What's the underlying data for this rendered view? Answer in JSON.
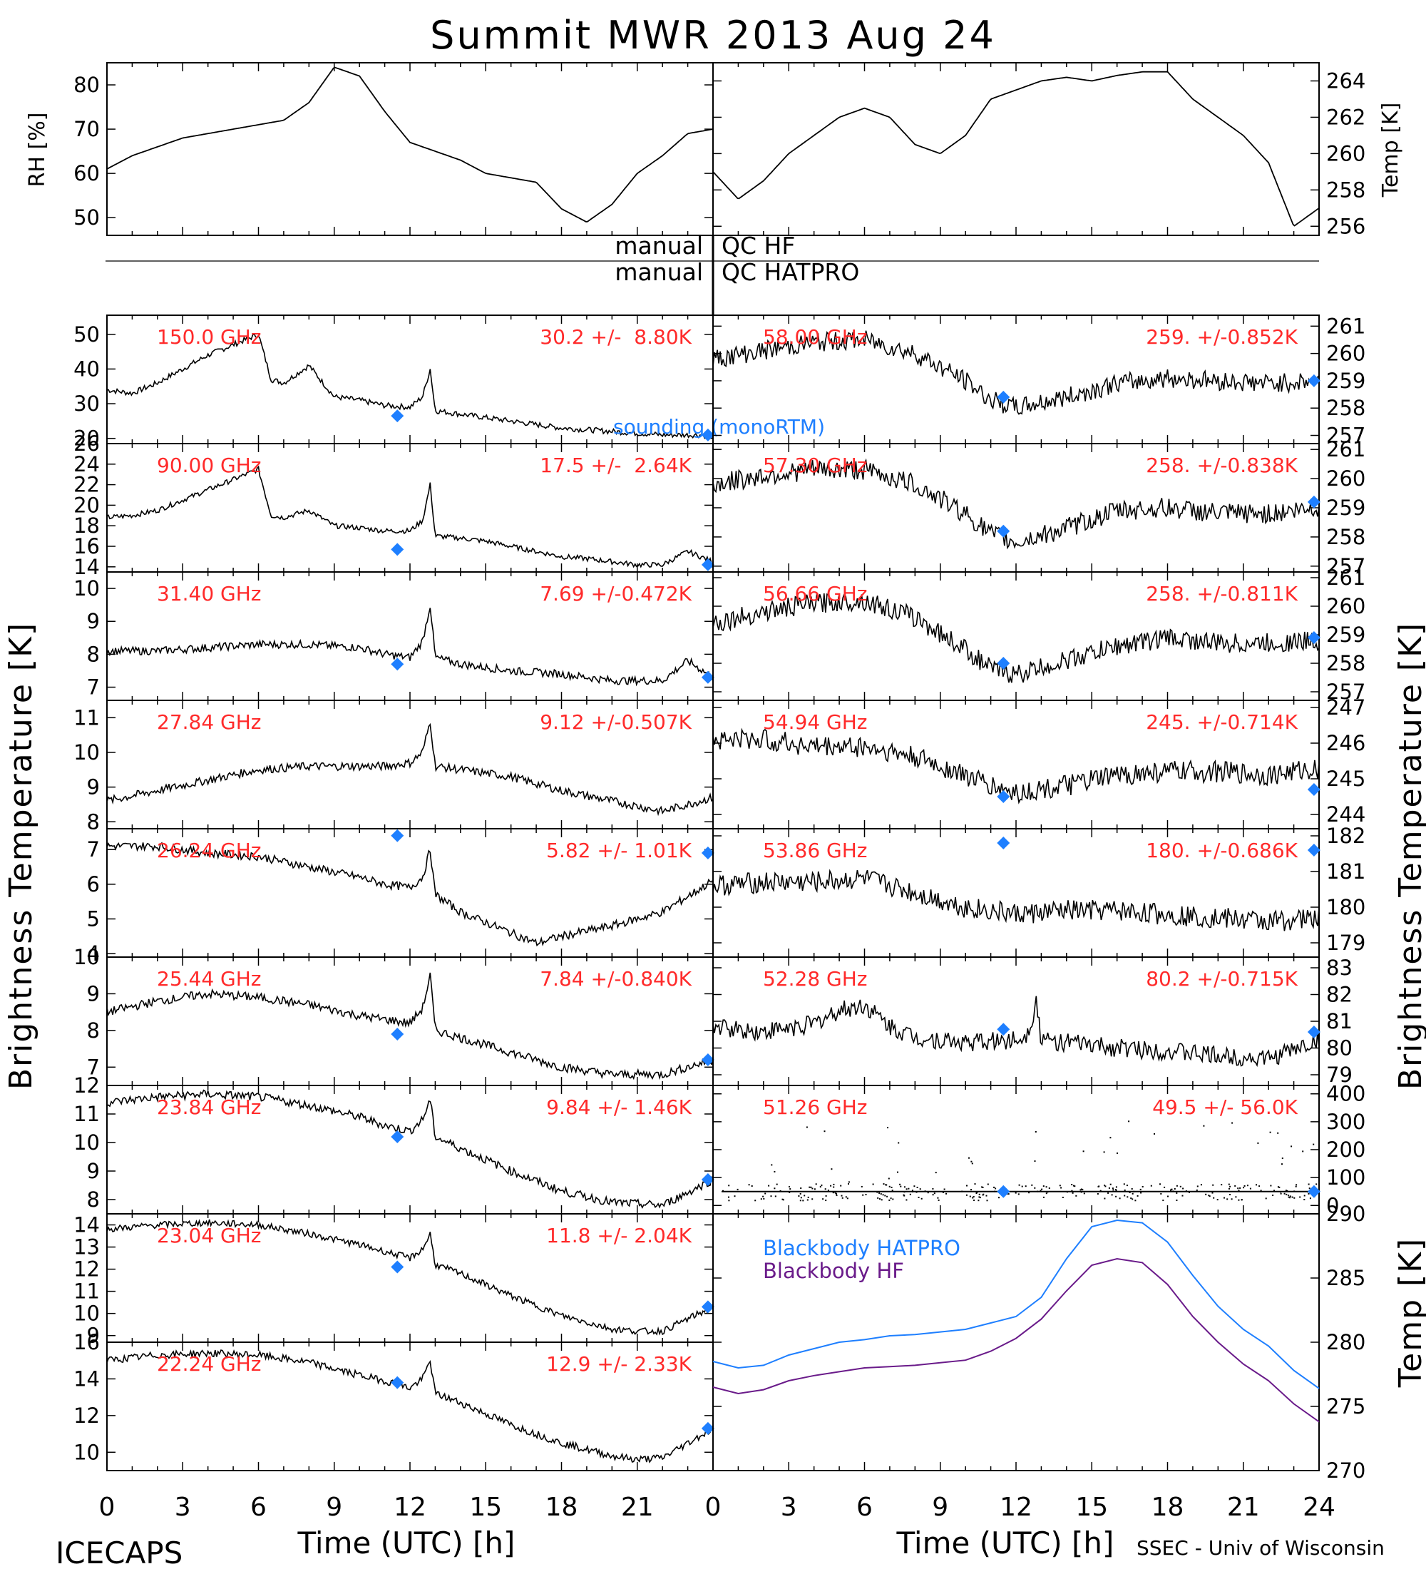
{
  "title": "Summit MWR 2013 Aug 24",
  "footer": {
    "left": "ICECAPS",
    "right": "SSEC - Univ of Wisconsin"
  },
  "qc_labels": {
    "left": [
      "manual",
      "manual"
    ],
    "right": [
      "QC HF",
      "QC HATPRO"
    ]
  },
  "axis_titles": {
    "bt_left": "Brightness Temperature [K]",
    "bt_right": "Brightness Temperature [K]",
    "rh": "RH [%]",
    "met_temp": "Temp [K]",
    "bb_temp": "Temp [K]",
    "time_left": "Time (UTC) [h]",
    "time_right": "Time (UTC) [h]"
  },
  "colors": {
    "data": "#000000",
    "label": "#ff2a2a",
    "sounding": "#1e7fff",
    "bb_hatpro": "#1e7fff",
    "bb_hf": "#6a1b8a"
  },
  "chart_data": [
    {
      "type": "line",
      "id": "rh",
      "side": "left",
      "ylabel": "RH [%]",
      "xlim": [
        0,
        24
      ],
      "ylim": [
        46,
        85
      ],
      "yticks": [
        50,
        60,
        70,
        80
      ],
      "x": [
        0,
        1,
        2,
        3,
        4,
        5,
        6,
        7,
        8,
        9,
        10,
        11,
        12,
        13,
        14,
        15,
        16,
        17,
        18,
        19,
        20,
        21,
        22,
        23,
        24
      ],
      "y": [
        61,
        64,
        66,
        68,
        69,
        70,
        71,
        72,
        76,
        84,
        82,
        74,
        67,
        65,
        63,
        60,
        59,
        58,
        52,
        49,
        53,
        60,
        64,
        69,
        70
      ]
    },
    {
      "type": "line",
      "id": "met_temp",
      "side": "right",
      "ylabel": "Temp [K]",
      "xlim": [
        0,
        24
      ],
      "ylim": [
        255.5,
        265
      ],
      "yticks": [
        256,
        258,
        260,
        262,
        264
      ],
      "x": [
        0,
        1,
        2,
        3,
        4,
        5,
        6,
        7,
        8,
        9,
        10,
        11,
        12,
        13,
        14,
        15,
        16,
        17,
        18,
        19,
        20,
        21,
        22,
        23,
        24
      ],
      "y": [
        259,
        257.5,
        258.5,
        260,
        261,
        262,
        262.5,
        262,
        260.5,
        260,
        261,
        263,
        263.5,
        264,
        264.2,
        264,
        264.3,
        264.5,
        264.5,
        263,
        262,
        261,
        259.5,
        256,
        257
      ]
    },
    {
      "type": "line",
      "id": "150",
      "side": "left",
      "label": "150.0 GHz",
      "stat": "30.2 +/-  8.80K",
      "xlim": [
        0,
        24
      ],
      "ylim": [
        18.5,
        55.5
      ],
      "yticks": [
        20,
        30,
        40,
        50
      ],
      "noise": 0.8,
      "x": [
        0,
        1,
        2,
        3,
        4,
        5,
        6,
        6.5,
        7,
        8,
        9,
        10,
        11,
        12,
        12.5,
        12.8,
        13,
        14,
        15,
        16,
        17,
        18,
        19,
        20,
        21,
        22,
        23,
        24
      ],
      "y": [
        34,
        33,
        36,
        40,
        44,
        47,
        50,
        37,
        36,
        41,
        32,
        31,
        29.5,
        29,
        32,
        40,
        28,
        27,
        26,
        25,
        24,
        23,
        22.5,
        22,
        21.5,
        21,
        21,
        21
      ],
      "sounding": [
        [
          11.5,
          26.5
        ],
        [
          23.8,
          21
        ]
      ],
      "sounding_label": "sounding (monoRTM)"
    },
    {
      "type": "line",
      "id": "90",
      "side": "left",
      "label": "90.00 GHz",
      "stat": "17.5 +/-  2.64K",
      "xlim": [
        0,
        24
      ],
      "ylim": [
        13.5,
        26
      ],
      "yticks": [
        14,
        16,
        18,
        20,
        22,
        24,
        26
      ],
      "noise": 0.25,
      "x": [
        0,
        1,
        2,
        3,
        4,
        5,
        6,
        6.5,
        7,
        8,
        9,
        10,
        11,
        12,
        12.5,
        12.8,
        13,
        14,
        15,
        16,
        17,
        18,
        19,
        20,
        21,
        22,
        23,
        24
      ],
      "y": [
        18.8,
        19,
        19.5,
        20.5,
        21.5,
        22.5,
        23.5,
        19,
        18.8,
        19.5,
        18,
        17.8,
        17.5,
        17.5,
        18.5,
        22,
        17,
        16.8,
        16.5,
        16,
        15.5,
        15,
        14.8,
        14.5,
        14.2,
        14.2,
        15.5,
        14.5
      ],
      "sounding": [
        [
          11.5,
          15.7
        ],
        [
          23.8,
          14.2
        ]
      ]
    },
    {
      "type": "line",
      "id": "31",
      "side": "left",
      "label": "31.40 GHz",
      "stat": "7.69 +/-0.472K",
      "xlim": [
        0,
        24
      ],
      "ylim": [
        6.6,
        10.5
      ],
      "yticks": [
        7,
        8,
        9,
        10
      ],
      "noise": 0.12,
      "x": [
        0,
        2,
        4,
        6,
        8,
        10,
        11,
        12,
        12.5,
        12.8,
        13,
        14,
        16,
        18,
        20,
        22,
        23,
        24
      ],
      "y": [
        8.1,
        8.1,
        8.2,
        8.3,
        8.3,
        8.2,
        8.0,
        7.9,
        8.4,
        9.5,
        7.9,
        7.7,
        7.5,
        7.4,
        7.2,
        7.2,
        7.8,
        7.3
      ],
      "sounding": [
        [
          11.5,
          7.7
        ],
        [
          23.8,
          7.3
        ]
      ]
    },
    {
      "type": "line",
      "id": "27",
      "side": "left",
      "label": "27.84 GHz",
      "stat": "9.12 +/-0.507K",
      "xlim": [
        0,
        24
      ],
      "ylim": [
        7.8,
        11.5
      ],
      "yticks": [
        8,
        9,
        10,
        11
      ],
      "noise": 0.12,
      "x": [
        0,
        2,
        4,
        6,
        8,
        10,
        11,
        12,
        12.5,
        12.8,
        13,
        14,
        16,
        18,
        20,
        22,
        24
      ],
      "y": [
        8.6,
        8.9,
        9.2,
        9.5,
        9.6,
        9.6,
        9.6,
        9.7,
        10.0,
        10.9,
        9.6,
        9.5,
        9.3,
        8.9,
        8.6,
        8.3,
        8.7
      ],
      "sounding": []
    },
    {
      "type": "line",
      "id": "26",
      "side": "left",
      "label": "26.24 GHz",
      "stat": "5.82 +/- 1.01K",
      "xlim": [
        0,
        24
      ],
      "ylim": [
        3.9,
        7.6
      ],
      "yticks": [
        4,
        5,
        6,
        7
      ],
      "noise": 0.12,
      "x": [
        0,
        2,
        4,
        6,
        8,
        10,
        11,
        12,
        12.5,
        12.8,
        13,
        14,
        16,
        17,
        18,
        20,
        22,
        24
      ],
      "y": [
        7.1,
        7.1,
        6.9,
        6.8,
        6.5,
        6.2,
        6.0,
        5.9,
        6.2,
        7.0,
        5.7,
        5.2,
        4.6,
        4.3,
        4.5,
        4.8,
        5.2,
        6.1
      ],
      "sounding": [
        [
          11.5,
          7.4
        ],
        [
          23.8,
          6.9
        ]
      ]
    },
    {
      "type": "line",
      "id": "25",
      "side": "left",
      "label": "25.44 GHz",
      "stat": "7.84 +/-0.840K",
      "xlim": [
        0,
        24
      ],
      "ylim": [
        6.5,
        10
      ],
      "yticks": [
        7,
        8,
        9,
        10
      ],
      "noise": 0.12,
      "x": [
        0,
        2,
        4,
        6,
        8,
        10,
        11,
        12,
        12.5,
        12.8,
        13,
        14,
        16,
        18,
        20,
        22,
        24
      ],
      "y": [
        8.5,
        8.8,
        9.0,
        8.9,
        8.7,
        8.4,
        8.3,
        8.2,
        8.6,
        9.5,
        8.0,
        7.8,
        7.4,
        7.0,
        6.8,
        6.8,
        7.2
      ],
      "sounding": [
        [
          11.5,
          7.9
        ],
        [
          23.8,
          7.2
        ]
      ]
    },
    {
      "type": "line",
      "id": "23.84",
      "side": "left",
      "label": "23.84 GHz",
      "stat": "9.84 +/- 1.46K",
      "xlim": [
        0,
        24
      ],
      "ylim": [
        7.5,
        12
      ],
      "yticks": [
        8,
        9,
        10,
        11,
        12
      ],
      "noise": 0.15,
      "x": [
        0,
        2,
        4,
        6,
        8,
        10,
        11,
        12,
        12.5,
        12.8,
        13,
        14,
        16,
        18,
        20,
        22,
        24
      ],
      "y": [
        11.4,
        11.6,
        11.7,
        11.6,
        11.3,
        10.9,
        10.6,
        10.4,
        10.8,
        11.5,
        10.2,
        9.8,
        9.0,
        8.3,
        7.9,
        7.8,
        8.7
      ],
      "sounding": [
        [
          11.5,
          10.2
        ],
        [
          23.8,
          8.7
        ]
      ]
    },
    {
      "type": "line",
      "id": "23.04",
      "side": "left",
      "label": "23.04 GHz",
      "stat": "11.8 +/- 2.04K",
      "xlim": [
        0,
        24
      ],
      "ylim": [
        8.7,
        14.5
      ],
      "yticks": [
        9,
        10,
        11,
        12,
        13,
        14
      ],
      "noise": 0.15,
      "x": [
        0,
        2,
        4,
        6,
        8,
        10,
        11,
        12,
        12.5,
        12.8,
        13,
        14,
        16,
        18,
        20,
        21,
        22,
        24
      ],
      "y": [
        13.8,
        14.0,
        14.1,
        14.0,
        13.6,
        13.1,
        12.8,
        12.5,
        12.9,
        13.6,
        12.2,
        11.8,
        10.8,
        9.9,
        9.3,
        9.2,
        9.2,
        10.3
      ],
      "sounding": [
        [
          11.5,
          12.1
        ],
        [
          23.8,
          10.3
        ]
      ]
    },
    {
      "type": "line",
      "id": "22.24",
      "side": "left",
      "label": "22.24 GHz",
      "stat": "12.9 +/- 2.33K",
      "xlim": [
        0,
        24
      ],
      "ylim": [
        9,
        16
      ],
      "yticks": [
        10,
        12,
        14,
        16
      ],
      "noise": 0.2,
      "x": [
        0,
        2,
        4,
        6,
        8,
        10,
        11,
        12,
        12.5,
        12.8,
        13,
        14,
        16,
        18,
        20,
        21,
        22,
        24
      ],
      "y": [
        15.0,
        15.3,
        15.4,
        15.3,
        14.9,
        14.2,
        13.9,
        13.5,
        14.0,
        15.0,
        13.2,
        12.7,
        11.5,
        10.5,
        9.8,
        9.6,
        9.7,
        11.3
      ],
      "sounding": [
        [
          11.5,
          13.8
        ],
        [
          23.8,
          11.3
        ]
      ]
    },
    {
      "type": "line",
      "id": "58",
      "side": "right",
      "label": "58.00 GHz",
      "stat": "259. +/-0.852K",
      "xlim": [
        0,
        24
      ],
      "ylim": [
        256.7,
        261.4
      ],
      "yticks": [
        257,
        258,
        259,
        260,
        261
      ],
      "noise": 0.35,
      "x": [
        0,
        2,
        4,
        6,
        8,
        10,
        11,
        12,
        14,
        16,
        18,
        20,
        22,
        24
      ],
      "y": [
        259.8,
        260.1,
        260.4,
        260.5,
        260.0,
        259.0,
        258.3,
        258.0,
        258.4,
        258.9,
        259.1,
        259.0,
        258.9,
        259.0
      ],
      "sounding": [
        [
          11.5,
          258.4
        ],
        [
          23.8,
          259.0
        ]
      ]
    },
    {
      "type": "line",
      "id": "57",
      "side": "right",
      "label": "57.30 GHz",
      "stat": "258. +/-0.838K",
      "xlim": [
        0,
        24
      ],
      "ylim": [
        256.8,
        261.2
      ],
      "yticks": [
        257,
        258,
        259,
        260,
        261
      ],
      "noise": 0.35,
      "x": [
        0,
        2,
        4,
        6,
        8,
        10,
        11,
        12,
        14,
        16,
        18,
        20,
        22,
        24
      ],
      "y": [
        259.8,
        260.1,
        260.3,
        260.3,
        259.8,
        258.8,
        258.1,
        257.8,
        258.3,
        258.9,
        259.0,
        258.8,
        258.8,
        259.0
      ],
      "sounding": [
        [
          11.5,
          258.2
        ],
        [
          23.8,
          259.2
        ]
      ]
    },
    {
      "type": "line",
      "id": "56",
      "side": "right",
      "label": "56.66 GHz",
      "stat": "258. +/-0.811K",
      "xlim": [
        0,
        24
      ],
      "ylim": [
        256.7,
        261.2
      ],
      "yticks": [
        257,
        258,
        259,
        260,
        261
      ],
      "noise": 0.35,
      "x": [
        0,
        2,
        4,
        6,
        8,
        10,
        11,
        12,
        14,
        16,
        18,
        20,
        22,
        24
      ],
      "y": [
        259.4,
        259.8,
        260.1,
        260.2,
        259.6,
        258.5,
        257.8,
        257.6,
        258.1,
        258.6,
        258.9,
        258.7,
        258.7,
        258.8
      ],
      "sounding": [
        [
          11.5,
          258.0
        ],
        [
          23.8,
          258.9
        ]
      ]
    },
    {
      "type": "line",
      "id": "54",
      "side": "right",
      "label": "54.94 GHz",
      "stat": "245. +/-0.714K",
      "xlim": [
        0,
        24
      ],
      "ylim": [
        243.6,
        247.2
      ],
      "yticks": [
        244,
        245,
        246,
        247
      ],
      "noise": 0.3,
      "x": [
        0,
        2,
        4,
        6,
        8,
        10,
        11,
        12,
        14,
        16,
        18,
        20,
        22,
        24
      ],
      "y": [
        246.1,
        246.1,
        245.9,
        245.9,
        245.6,
        245.1,
        244.8,
        244.6,
        244.8,
        245.1,
        245.2,
        245.2,
        245.1,
        245.3
      ],
      "sounding": [
        [
          11.5,
          244.5
        ],
        [
          23.8,
          244.7
        ]
      ]
    },
    {
      "type": "line",
      "id": "53",
      "side": "right",
      "label": "53.86 GHz",
      "stat": "180. +/-0.686K",
      "xlim": [
        0,
        24
      ],
      "ylim": [
        178.6,
        182.2
      ],
      "yticks": [
        179,
        180,
        181,
        182
      ],
      "noise": 0.3,
      "x": [
        0,
        2,
        4,
        6,
        8,
        10,
        12,
        14,
        16,
        18,
        20,
        22,
        24
      ],
      "y": [
        180.6,
        180.7,
        180.7,
        180.8,
        180.4,
        180.0,
        179.8,
        179.9,
        179.9,
        179.8,
        179.7,
        179.6,
        179.7
      ],
      "sounding": [
        [
          11.5,
          181.8
        ],
        [
          23.8,
          181.6
        ]
      ]
    },
    {
      "type": "line",
      "id": "52",
      "side": "right",
      "label": "52.28 GHz",
      "stat": "80.2 +/-0.715K",
      "xlim": [
        0,
        24
      ],
      "ylim": [
        78.6,
        83.4
      ],
      "yticks": [
        79,
        80,
        81,
        82,
        83
      ],
      "noise": 0.35,
      "x": [
        0,
        2,
        4,
        5,
        6,
        7,
        8,
        10,
        12,
        12.5,
        12.8,
        13,
        14,
        16,
        18,
        20,
        22,
        24
      ],
      "y": [
        80.8,
        80.6,
        80.9,
        81.4,
        81.6,
        80.8,
        80.4,
        80.2,
        80.3,
        80.6,
        81.8,
        80.3,
        80.2,
        80.0,
        79.9,
        79.7,
        79.6,
        80.3
      ],
      "sounding": [
        [
          11.5,
          80.7
        ],
        [
          23.8,
          80.6
        ]
      ]
    },
    {
      "type": "scatter",
      "id": "51",
      "side": "right",
      "label": "51.26 GHz",
      "stat": "49.5 +/- 56.0K",
      "xlim": [
        0,
        24
      ],
      "ylim": [
        -30,
        430
      ],
      "yticks": [
        0,
        100,
        200,
        300,
        400
      ],
      "baseline": 50,
      "sounding": [
        [
          11.5,
          50
        ],
        [
          23.8,
          50
        ]
      ]
    },
    {
      "type": "line",
      "id": "bb",
      "side": "right",
      "ylabel": "Temp [K]",
      "xlim": [
        0,
        24
      ],
      "ylim": [
        270,
        290
      ],
      "yticks": [
        270,
        275,
        280,
        285,
        290
      ],
      "xticks": [
        0,
        3,
        6,
        9,
        12,
        15,
        18,
        21,
        24
      ],
      "x": [
        0,
        1,
        2,
        3,
        4,
        5,
        6,
        7,
        8,
        9,
        10,
        11,
        12,
        13,
        14,
        15,
        16,
        17,
        18,
        19,
        20,
        21,
        22,
        23,
        24
      ],
      "series": [
        {
          "name": "Blackbody HATPRO",
          "values": [
            278.5,
            278,
            278.2,
            279,
            279.5,
            280,
            280.2,
            280.5,
            280.6,
            280.8,
            281,
            281.5,
            282,
            283.5,
            286.5,
            289,
            289.5,
            289.3,
            287.8,
            285.2,
            282.8,
            281,
            279.7,
            277.8,
            276.4
          ]
        },
        {
          "name": "Blackbody HF",
          "values": [
            276.5,
            276,
            276.3,
            277,
            277.4,
            277.7,
            278,
            278.1,
            278.2,
            278.4,
            278.6,
            279.3,
            280.3,
            281.8,
            284,
            286,
            286.5,
            286.2,
            284.5,
            282,
            280,
            278.3,
            277,
            275.2,
            273.8
          ]
        }
      ]
    }
  ],
  "xticks": [
    0,
    3,
    6,
    9,
    12,
    15,
    18,
    21
  ]
}
